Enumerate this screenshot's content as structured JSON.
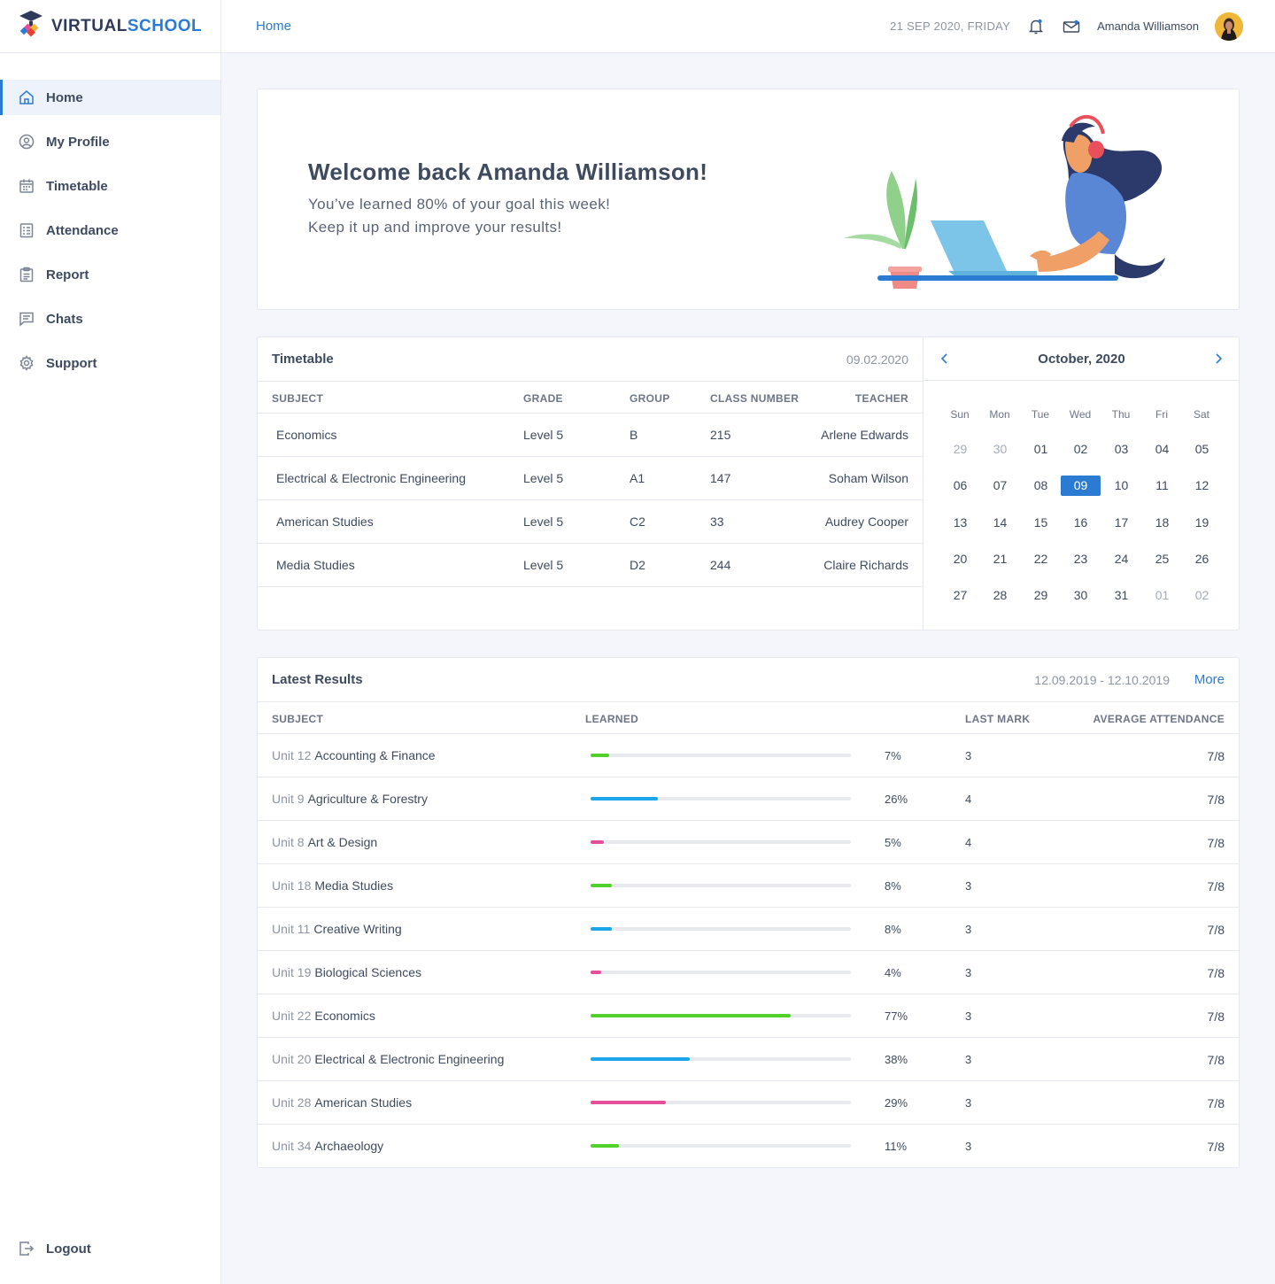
{
  "brand": {
    "part1": "VIRTUAL",
    "part2": "SCHOOL"
  },
  "sidebar": {
    "items": [
      {
        "label": "Home",
        "icon": "home-icon"
      },
      {
        "label": "My Profile",
        "icon": "user-circle-icon"
      },
      {
        "label": "Timetable",
        "icon": "calendar-icon"
      },
      {
        "label": "Attendance",
        "icon": "checklist-icon"
      },
      {
        "label": "Report",
        "icon": "report-icon"
      },
      {
        "label": "Chats",
        "icon": "chat-icon"
      },
      {
        "label": "Support",
        "icon": "gear-icon"
      }
    ],
    "logout": "Logout"
  },
  "header": {
    "breadcrumb": "Home",
    "date": "21 SEP 2020, FRIDAY",
    "user_name": "Amanda Williamson"
  },
  "welcome": {
    "title": "Welcome back Amanda Williamson!",
    "line1": "You’ve learned 80% of your goal this week!",
    "line2": "Keep it up and improve your results!"
  },
  "timetable": {
    "title": "Timetable",
    "date": "09.02.2020",
    "columns": [
      "SUBJECT",
      "GRADE",
      "GROUP",
      "CLASS NUMBER",
      "TEACHER"
    ],
    "rows": [
      {
        "subject": "Economics",
        "grade": "Level 5",
        "group": "B",
        "class_number": "215",
        "teacher": "Arlene Edwards"
      },
      {
        "subject": "Electrical & Electronic Engineering",
        "grade": "Level 5",
        "group": "A1",
        "class_number": "147",
        "teacher": "Soham Wilson"
      },
      {
        "subject": "American Studies",
        "grade": "Level 5",
        "group": "C2",
        "class_number": "33",
        "teacher": "Audrey Cooper"
      },
      {
        "subject": "Media Studies",
        "grade": "Level 5",
        "group": "D2",
        "class_number": "244",
        "teacher": "Claire Richards"
      }
    ]
  },
  "calendar": {
    "title": "October, 2020",
    "weekdays": [
      "Sun",
      "Mon",
      "Tue",
      "Wed",
      "Thu",
      "Fri",
      "Sat"
    ],
    "weeks": [
      [
        "29",
        "30",
        "01",
        "02",
        "03",
        "04",
        "05"
      ],
      [
        "06",
        "07",
        "08",
        "09",
        "10",
        "11",
        "12"
      ],
      [
        "13",
        "14",
        "15",
        "16",
        "17",
        "18",
        "19"
      ],
      [
        "20",
        "21",
        "22",
        "23",
        "24",
        "25",
        "26"
      ],
      [
        "27",
        "28",
        "29",
        "30",
        "31",
        "01",
        "02"
      ]
    ],
    "muted_cells": [
      [
        0,
        0
      ],
      [
        0,
        1
      ],
      [
        4,
        5
      ],
      [
        4,
        6
      ]
    ],
    "selected_cell": [
      1,
      3
    ]
  },
  "results": {
    "title": "Latest Results",
    "range": "12.09.2019 - 12.10.2019",
    "more": "More",
    "columns": [
      "SUBJECT",
      "LEARNED",
      "LAST MARK",
      "AVERAGE ATTENDANCE"
    ],
    "colors": {
      "green": "#52d12a",
      "blue": "#1aa6e8",
      "pink": "#e84d9a"
    },
    "rows": [
      {
        "unit": "Unit 12",
        "subject": "Accounting & Finance",
        "learned": 7,
        "learned_label": "7%",
        "color": "green",
        "mark": "3",
        "attendance": "7/8"
      },
      {
        "unit": "Unit 9",
        "subject": "Agriculture & Forestry",
        "learned": 26,
        "learned_label": "26%",
        "color": "blue",
        "mark": "4",
        "attendance": "7/8"
      },
      {
        "unit": "Unit 8",
        "subject": "Art & Design",
        "learned": 5,
        "learned_label": "5%",
        "color": "pink",
        "mark": "4",
        "attendance": "7/8"
      },
      {
        "unit": "Unit 18",
        "subject": "Media Studies",
        "learned": 8,
        "learned_label": "8%",
        "color": "green",
        "mark": "3",
        "attendance": "7/8"
      },
      {
        "unit": "Unit 11",
        "subject": "Creative Writing",
        "learned": 8,
        "learned_label": "8%",
        "color": "blue",
        "mark": "3",
        "attendance": "7/8"
      },
      {
        "unit": "Unit 19",
        "subject": "Biological Sciences",
        "learned": 4,
        "learned_label": "4%",
        "color": "pink",
        "mark": "3",
        "attendance": "7/8"
      },
      {
        "unit": "Unit 22",
        "subject": "Economics",
        "learned": 77,
        "learned_label": "77%",
        "color": "green",
        "mark": "3",
        "attendance": "7/8"
      },
      {
        "unit": "Unit 20",
        "subject": "Electrical & Electronic Engineering",
        "learned": 38,
        "learned_label": "38%",
        "color": "blue",
        "mark": "3",
        "attendance": "7/8"
      },
      {
        "unit": "Unit 28",
        "subject": "American Studies",
        "learned": 29,
        "learned_label": "29%",
        "color": "pink",
        "mark": "3",
        "attendance": "7/8"
      },
      {
        "unit": "Unit 34",
        "subject": "Archaeology",
        "learned": 11,
        "learned_label": "11%",
        "color": "green",
        "mark": "3",
        "attendance": "7/8"
      }
    ]
  }
}
